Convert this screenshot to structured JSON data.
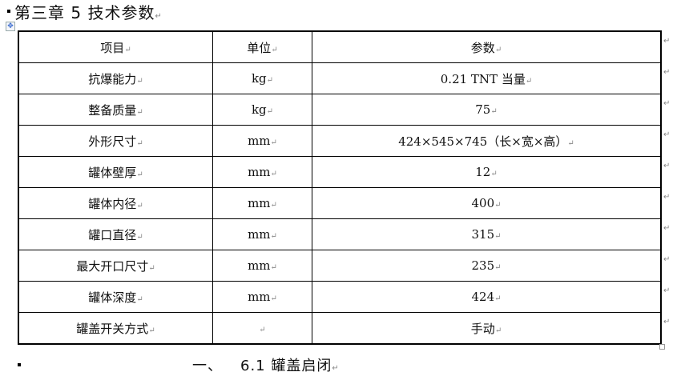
{
  "heading": "第三章 5 技术参数",
  "table": {
    "header": [
      "项目",
      "单位",
      "参数"
    ],
    "rows": [
      [
        "抗爆能力",
        "kg",
        "0.21  TNT 当量"
      ],
      [
        "整备质量",
        "kg",
        "75"
      ],
      [
        "外形尺寸",
        "mm",
        "424×545×745（长×宽×高）"
      ],
      [
        "罐体壁厚",
        "mm",
        "12"
      ],
      [
        "罐体内径",
        "mm",
        "400"
      ],
      [
        "罐口直径",
        "mm",
        "315"
      ],
      [
        "最大开口尺寸",
        "mm",
        "235"
      ],
      [
        "罐体深度",
        "mm",
        "424"
      ],
      [
        "罐盖开关方式",
        "",
        "手动"
      ]
    ]
  },
  "subheading": {
    "number": "一、",
    "title": "6.1 罐盖启闭"
  },
  "paragraph_mark": "↵"
}
